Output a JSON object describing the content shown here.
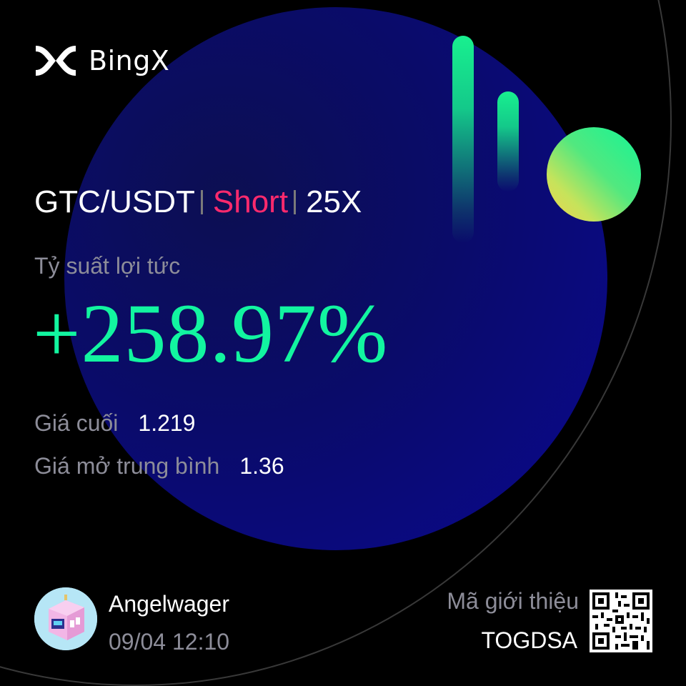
{
  "brand": {
    "name": "BingX",
    "logo_icon": "bingx-x-logo-icon"
  },
  "position": {
    "pair": "GTC/USDT",
    "side": "Short",
    "leverage": "25X"
  },
  "roi": {
    "label": "Tỷ suất lợi tức",
    "value": "+258.97%"
  },
  "prices": {
    "last_label": "Giá cuối",
    "last_value": "1.219",
    "avg_open_label": "Giá mở trung bình",
    "avg_open_value": "1.36"
  },
  "user": {
    "name": "Angelwager",
    "timestamp": "09/04 12:10",
    "avatar_icon": "pixel-cube-avatar-icon"
  },
  "referral": {
    "label": "Mã giới thiệu",
    "code": "TOGDSA",
    "qr_icon": "qr-code-icon"
  },
  "colors": {
    "background": "#000000",
    "profit_green": "#12f5a0",
    "short_red": "#ff2a6d",
    "muted_text": "#8d8d99",
    "circle_blue": "#0a0890"
  }
}
